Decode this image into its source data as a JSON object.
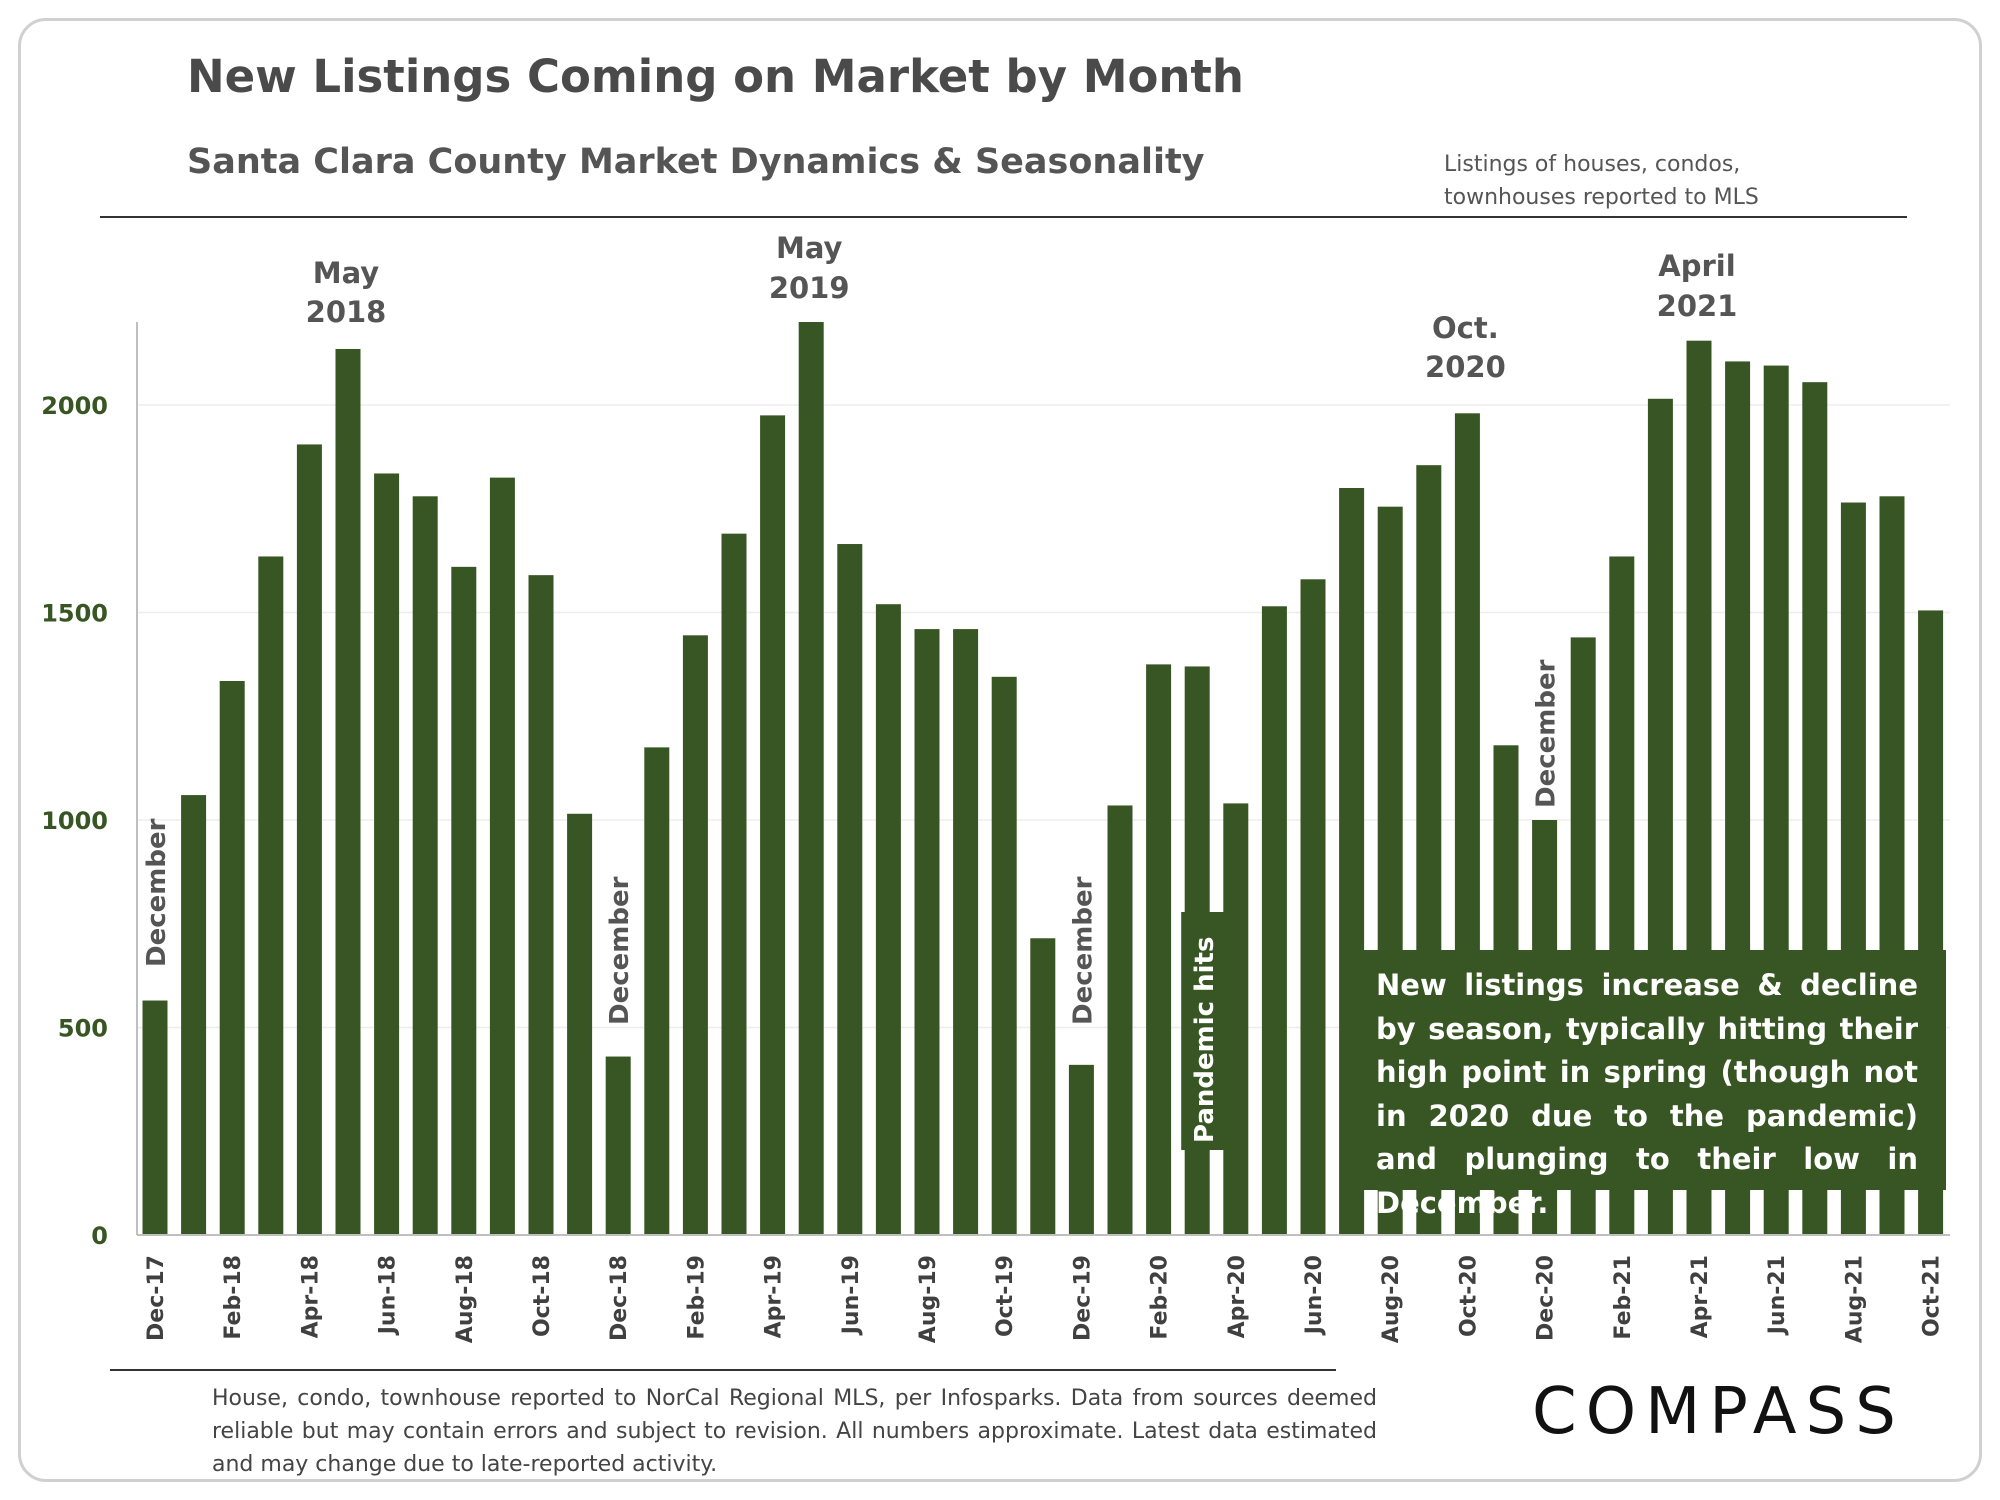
{
  "page": {
    "title": "New Listings Coming on Market by Month",
    "subtitle": "Santa Clara County Market Dynamics & Seasonality",
    "note_line1": "Listings of houses, condos,",
    "note_line2": "townhouses  reported to MLS",
    "footer": "House, condo, townhouse reported to NorCal Regional MLS, per Infosparks. Data from sources deemed reliable but may contain errors and subject to revision. All numbers approximate. Latest data estimated and may change due to late-reported activity.",
    "brand": "COMPASS",
    "callout": "New listings increase & decline by season, typically hitting their high point  in spring (though not in 2020 due to the pandemic) and plunging to their low in December."
  },
  "colors": {
    "bar": "#375623",
    "axis_text": "#375623",
    "annotation": "#555555"
  },
  "chart_data": {
    "type": "bar",
    "x": [
      "Dec-17",
      "Jan-18",
      "Feb-18",
      "Mar-18",
      "Apr-18",
      "May-18",
      "Jun-18",
      "Jul-18",
      "Aug-18",
      "Sep-18",
      "Oct-18",
      "Nov-18",
      "Dec-18",
      "Jan-19",
      "Feb-19",
      "Mar-19",
      "Apr-19",
      "May-19",
      "Jun-19",
      "Jul-19",
      "Aug-19",
      "Sep-19",
      "Oct-19",
      "Nov-19",
      "Dec-19",
      "Jan-20",
      "Feb-20",
      "Mar-20",
      "Apr-20",
      "May-20",
      "Jun-20",
      "Jul-20",
      "Aug-20",
      "Sep-20",
      "Oct-20",
      "Nov-20",
      "Dec-20",
      "Jan-21",
      "Feb-21",
      "Mar-21",
      "Apr-21",
      "May-21",
      "Jun-21",
      "Jul-21",
      "Aug-21",
      "Sep-21",
      "Oct-21"
    ],
    "x_tick_labels": [
      "Dec-17",
      "",
      "Feb-18",
      "",
      "Apr-18",
      "",
      "Jun-18",
      "",
      "Aug-18",
      "",
      "Oct-18",
      "",
      "Dec-18",
      "",
      "Feb-19",
      "",
      "Apr-19",
      "",
      "Jun-19",
      "",
      "Aug-19",
      "",
      "Oct-19",
      "",
      "Dec-19",
      "",
      "Feb-20",
      "",
      "Apr-20",
      "",
      "Jun-20",
      "",
      "Aug-20",
      "",
      "Oct-20",
      "",
      "Dec-20",
      "",
      "Feb-21",
      "",
      "Apr-21",
      "",
      "Jun-21",
      "",
      "Aug-21",
      "",
      "Oct-21"
    ],
    "values": [
      565,
      1060,
      1335,
      1635,
      1905,
      2135,
      1835,
      1780,
      1610,
      1825,
      1590,
      1015,
      430,
      1175,
      1445,
      1690,
      1975,
      2200,
      1665,
      1520,
      1460,
      1460,
      1345,
      715,
      410,
      1035,
      1375,
      1370,
      1040,
      1515,
      1580,
      1800,
      1755,
      1855,
      1980,
      1180,
      1000,
      1440,
      1635,
      2015,
      2155,
      2105,
      2095,
      2055,
      1765,
      1780,
      1505
    ],
    "ylim": [
      0,
      2200
    ],
    "yticks": [
      0,
      500,
      1000,
      1500,
      2000
    ],
    "grid": true,
    "annotations": {
      "peak_2018": {
        "line1": "May",
        "line2": "2018"
      },
      "peak_2019": {
        "line1": "May",
        "line2": "2019"
      },
      "peak_2020": {
        "line1": "Oct.",
        "line2": "2020"
      },
      "peak_2021": {
        "line1": "April",
        "line2": "2021"
      },
      "december_label": "December",
      "pandemic_label": "Pandemic hits"
    }
  }
}
